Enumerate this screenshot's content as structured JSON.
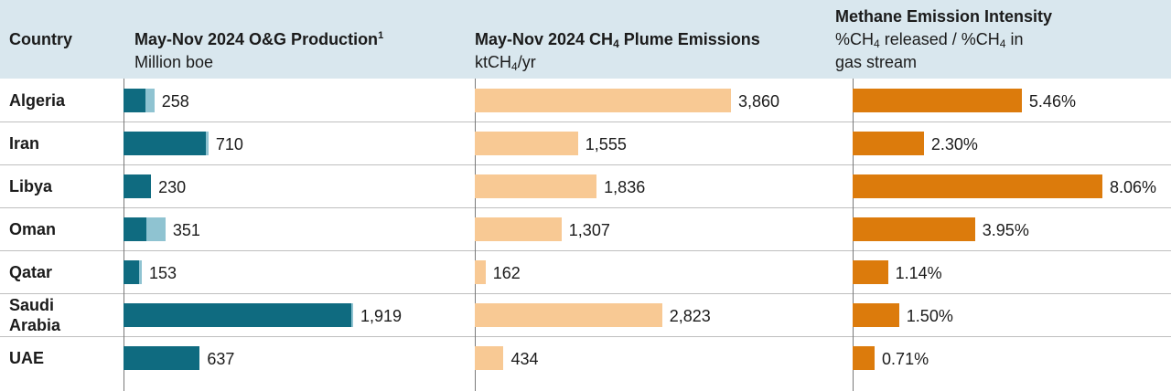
{
  "header": {
    "country_label": "Country",
    "production_title": "May-Nov 2024 O&G Production",
    "production_footnote": "1",
    "production_unit": "Million boe",
    "emissions_title_pre": "May-Nov 2024 CH",
    "emissions_title_sub": "4",
    "emissions_title_post": " Plume Emissions",
    "emissions_unit_pre": "ktCH",
    "emissions_unit_sub": "4",
    "emissions_unit_post": "/yr",
    "intensity_title": "Methane Emission Intensity",
    "intensity_unit_pre": "%CH",
    "intensity_unit_sub": "4",
    "intensity_unit_mid": " released / %CH",
    "intensity_unit_sub2": "4",
    "intensity_unit_post": " in",
    "intensity_unit_line2": "gas stream"
  },
  "colors": {
    "header_bg": "#d9e7ee",
    "production_dark": "#0f6b80",
    "production_light": "#8fc3d1",
    "emissions": "#f8c994",
    "intensity": "#dc7b0c"
  },
  "chart_data": {
    "type": "bar",
    "categories": [
      "Algeria",
      "Iran",
      "Libya",
      "Oman",
      "Qatar",
      "Saudi Arabia",
      "UAE"
    ],
    "production": {
      "title": "May-Nov 2024 O&G Production",
      "unit": "Million boe",
      "values": [
        258,
        710,
        230,
        351,
        153,
        1919,
        637
      ],
      "labels": [
        "258",
        "710",
        "230",
        "351",
        "153",
        "1,919",
        "637"
      ],
      "light_portion": [
        75,
        20,
        0,
        160,
        25,
        12,
        0
      ],
      "xlim": [
        0,
        1919
      ]
    },
    "emissions": {
      "title": "May-Nov 2024 CH4 Plume Emissions",
      "unit": "ktCH4/yr",
      "values": [
        3860,
        1555,
        1836,
        1307,
        162,
        2823,
        434
      ],
      "labels": [
        "3,860",
        "1,555",
        "1,836",
        "1,307",
        "162",
        "2,823",
        "434"
      ],
      "xlim": [
        0,
        3860
      ]
    },
    "intensity": {
      "title": "Methane Emission Intensity",
      "unit": "%CH4 released / %CH4 in gas stream",
      "values": [
        5.46,
        2.3,
        8.06,
        3.95,
        1.14,
        1.5,
        0.71
      ],
      "labels": [
        "5.46%",
        "2.30%",
        "8.06%",
        "3.95%",
        "1.14%",
        "1.50%",
        "0.71%"
      ],
      "xlim": [
        0,
        8.06
      ]
    }
  }
}
